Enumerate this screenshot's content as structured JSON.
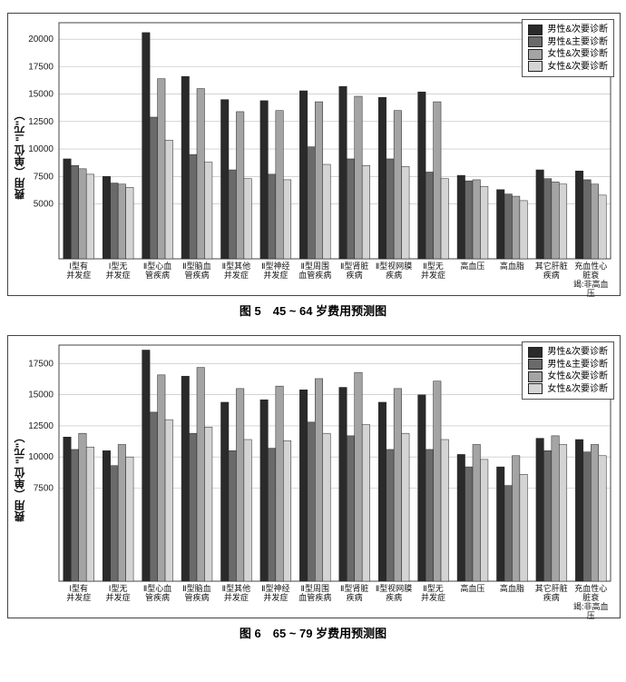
{
  "legend": {
    "labels": [
      "男性&次要诊断",
      "男性&主要诊断",
      "女性&次要诊断",
      "女性&次要诊断"
    ],
    "colors": [
      "#2a2a2a",
      "#6a6a6a",
      "#a4a4a4",
      "#d4d4d4"
    ]
  },
  "common": {
    "ylabel": "费用（单位 \"元\"）",
    "categories": [
      "Ⅰ型有\n并发症",
      "Ⅰ型无\n并发症",
      "Ⅱ型心血\n管疾病",
      "Ⅱ型脑血\n管疾病",
      "Ⅱ型其他\n并发症",
      "Ⅱ型神经\n并发症",
      "Ⅱ型周围\n血管疾病",
      "Ⅱ型肾脏\n疾病",
      "Ⅱ型视网膜\n疾病",
      "Ⅱ型无\n并发症",
      "高血压",
      "高血脂",
      "其它肝脏\n疾病",
      "充血性心脏衰\n竭:非高血压"
    ],
    "bar_border": "#222222",
    "grid_color": "#bbbbbb",
    "background": "#ffffff",
    "label_fontsize": 10,
    "title_fontsize": 13,
    "bar_group_width": 0.78
  },
  "panelA": {
    "caption": "图 5　45 ~ 64 岁费用预测图",
    "ylim": [
      0,
      21500
    ],
    "yticks": [
      5000,
      7500,
      10000,
      12500,
      15000,
      17500,
      20000
    ],
    "series": [
      [
        9100,
        7500,
        20600,
        16600,
        14500,
        14400,
        15300,
        15700,
        14700,
        15200,
        7600,
        6300,
        8100,
        8000
      ],
      [
        8500,
        6900,
        12900,
        9500,
        8100,
        7700,
        10200,
        9100,
        9100,
        7900,
        7100,
        5900,
        7300,
        7200
      ],
      [
        8200,
        6800,
        16400,
        15500,
        13400,
        13500,
        14300,
        14800,
        13500,
        14300,
        7200,
        5700,
        7000,
        6800
      ],
      [
        7700,
        6500,
        10800,
        8800,
        7300,
        7200,
        8600,
        8500,
        8400,
        7300,
        6600,
        5300,
        6800,
        5800
      ]
    ]
  },
  "panelB": {
    "caption": "图 6　65 ~ 79 岁费用预测图",
    "ylim": [
      0,
      19000
    ],
    "yticks": [
      7500,
      10000,
      12500,
      15000,
      17500
    ],
    "series": [
      [
        11600,
        10500,
        18600,
        16500,
        14400,
        14600,
        15400,
        15600,
        14400,
        15000,
        10200,
        9200,
        11500,
        11400
      ],
      [
        10600,
        9300,
        13600,
        11900,
        10500,
        10700,
        12800,
        11700,
        10600,
        10600,
        9200,
        7700,
        10500,
        10400
      ],
      [
        11900,
        11000,
        16600,
        17200,
        15500,
        15700,
        16300,
        16800,
        15500,
        16100,
        11000,
        10100,
        11700,
        11000
      ],
      [
        10800,
        10000,
        13000,
        12400,
        11400,
        11300,
        11900,
        12600,
        11900,
        11400,
        9800,
        8600,
        11000,
        10100
      ]
    ]
  }
}
